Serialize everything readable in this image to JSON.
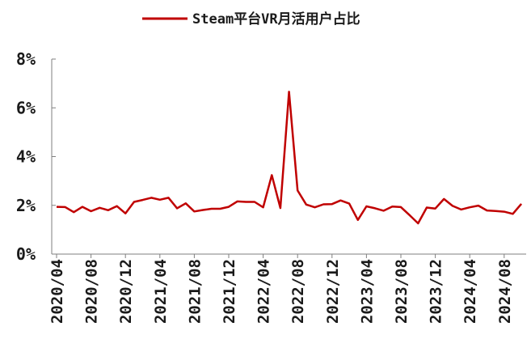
{
  "chart_data": {
    "type": "line",
    "title": "",
    "xlabel": "",
    "ylabel": "",
    "ylim": [
      0,
      8
    ],
    "ytick_labels": [
      "0%",
      "2%",
      "4%",
      "6%",
      "8%"
    ],
    "ytick_values": [
      0,
      2,
      4,
      6,
      8
    ],
    "xtick_labels": [
      "2020/04",
      "2020/08",
      "2020/12",
      "2021/04",
      "2021/08",
      "2021/12",
      "2022/04",
      "2022/08",
      "2022/12",
      "2023/04",
      "2023/08",
      "2023/12",
      "2024/04",
      "2024/08"
    ],
    "legend": {
      "placement": "top-center"
    },
    "grid": false,
    "series": [
      {
        "name": "Steam平台VR月活用户占比",
        "color": "#c00000",
        "x": [
          "2020/04",
          "2020/05",
          "2020/06",
          "2020/07",
          "2020/08",
          "2020/09",
          "2020/10",
          "2020/11",
          "2020/12",
          "2021/01",
          "2021/02",
          "2021/03",
          "2021/04",
          "2021/05",
          "2021/06",
          "2021/07",
          "2021/08",
          "2021/09",
          "2021/10",
          "2021/11",
          "2021/12",
          "2022/01",
          "2022/02",
          "2022/03",
          "2022/04",
          "2022/05",
          "2022/06",
          "2022/07",
          "2022/08",
          "2022/09",
          "2022/10",
          "2022/11",
          "2022/12",
          "2023/01",
          "2023/02",
          "2023/03",
          "2023/04",
          "2023/05",
          "2023/06",
          "2023/07",
          "2023/08",
          "2023/09",
          "2023/10",
          "2023/11",
          "2023/12",
          "2024/01",
          "2024/02",
          "2024/03",
          "2024/04",
          "2024/05",
          "2024/06",
          "2024/07",
          "2024/08",
          "2024/09",
          "2024/10"
        ],
        "values": [
          1.94,
          1.93,
          1.72,
          1.94,
          1.76,
          1.9,
          1.8,
          1.97,
          1.67,
          2.14,
          2.22,
          2.31,
          2.23,
          2.31,
          1.88,
          2.08,
          1.75,
          1.81,
          1.86,
          1.86,
          1.94,
          2.16,
          2.14,
          2.14,
          1.92,
          3.24,
          1.89,
          6.66,
          2.61,
          2.03,
          1.92,
          2.04,
          2.05,
          2.2,
          2.07,
          1.4,
          1.96,
          1.88,
          1.78,
          1.95,
          1.93,
          1.6,
          1.26,
          1.91,
          1.87,
          2.26,
          1.98,
          1.83,
          1.92,
          1.99,
          1.79,
          1.77,
          1.74,
          1.65,
          2.06
        ]
      }
    ]
  }
}
